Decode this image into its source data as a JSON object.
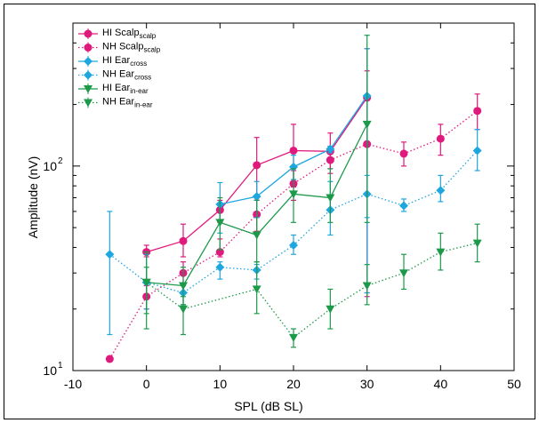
{
  "chart_data": {
    "type": "line",
    "x_label": "SPL (dB SL)",
    "y_label": "Amplitude (nV)",
    "log_y": true,
    "xlim": [
      -10,
      50
    ],
    "xticks": [
      -10,
      0,
      10,
      20,
      30,
      40,
      50
    ],
    "ylim": [
      10,
      500
    ],
    "yticks": [
      {
        "value": 10,
        "label": "10",
        "exponent": "1"
      },
      {
        "value": 100,
        "label": "10",
        "exponent": "2"
      }
    ],
    "yminorticks": [
      20,
      30,
      40,
      50,
      60,
      70,
      80,
      90,
      200,
      300,
      400
    ],
    "legend": "upper-left",
    "series": [
      {
        "name": "HI Scalp",
        "subscript": "scalp",
        "color": "#e0197d",
        "dash": "solid",
        "marker": "circle",
        "x": [
          0,
          5,
          10,
          15,
          20,
          25,
          30
        ],
        "values": [
          38,
          43,
          61,
          101,
          119,
          118,
          216
        ],
        "err_low": [
          36,
          36,
          53,
          68,
          79,
          97,
          24
        ],
        "err_high": [
          41,
          52,
          68,
          138,
          160,
          145,
          375
        ]
      },
      {
        "name": "NH Scalp",
        "subscript": "scalp",
        "color": "#e0197d",
        "dash": "dotted",
        "marker": "circle",
        "x": [
          -5,
          0,
          5,
          10,
          15,
          20,
          25,
          30,
          35,
          40,
          45
        ],
        "values": [
          11.4,
          23,
          30,
          38,
          58,
          82,
          107,
          128,
          115,
          136,
          186
        ],
        "err_low": [
          null,
          20,
          26,
          36,
          48,
          68,
          92,
          23,
          100,
          113,
          151
        ],
        "err_high": [
          null,
          26,
          34,
          44,
          68,
          95,
          125,
          292,
          131,
          160,
          225
        ]
      },
      {
        "name": "HI Ear",
        "subscript": "cross",
        "color": "#1ea6df",
        "dash": "solid",
        "marker": "diamond",
        "x": [
          10,
          15,
          20,
          25,
          30
        ],
        "values": [
          65,
          71,
          99,
          121,
          220
        ],
        "err_low": [
          47,
          56,
          86,
          116,
          24
        ],
        "err_high": [
          83,
          84,
          113,
          125,
          375
        ]
      },
      {
        "name": "NH Ear",
        "subscript": "cross",
        "color": "#1ea6df",
        "dash": "dotted",
        "marker": "diamond",
        "x": [
          -5,
          0,
          5,
          10,
          15,
          20,
          25,
          30,
          35,
          40,
          45
        ],
        "values": [
          37,
          27,
          24,
          32,
          31,
          41,
          61,
          73,
          64,
          76,
          119
        ],
        "err_low": [
          15,
          20,
          21,
          28,
          28,
          37,
          46,
          56,
          60,
          67,
          95
        ],
        "err_high": [
          60,
          37,
          26,
          34,
          33,
          46,
          84,
          90,
          69,
          90,
          151
        ]
      },
      {
        "name": "HI Ear",
        "subscript": "in-ear",
        "color": "#1c9a4a",
        "dash": "solid",
        "marker": "triangle",
        "x": [
          0,
          5,
          10,
          15,
          20,
          25,
          30
        ],
        "values": [
          27,
          26,
          53,
          46,
          73,
          70,
          160
        ],
        "err_low": [
          16,
          21,
          39,
          34,
          53,
          53,
          53
        ],
        "err_high": [
          38,
          32,
          70,
          68,
          97,
          97,
          436
        ]
      },
      {
        "name": "NH Ear",
        "subscript": "in-ear",
        "color": "#1c9a4a",
        "dash": "dotted",
        "marker": "triangle",
        "x": [
          0,
          5,
          15,
          20,
          25,
          30,
          35,
          40,
          45
        ],
        "values": [
          27,
          20,
          25,
          14.5,
          20,
          26,
          30,
          38,
          42
        ],
        "err_low": [
          19,
          15,
          19,
          13,
          16,
          21,
          25,
          31,
          34
        ],
        "err_high": [
          32,
          23,
          34,
          16,
          25,
          33,
          37,
          47,
          52
        ]
      }
    ]
  }
}
